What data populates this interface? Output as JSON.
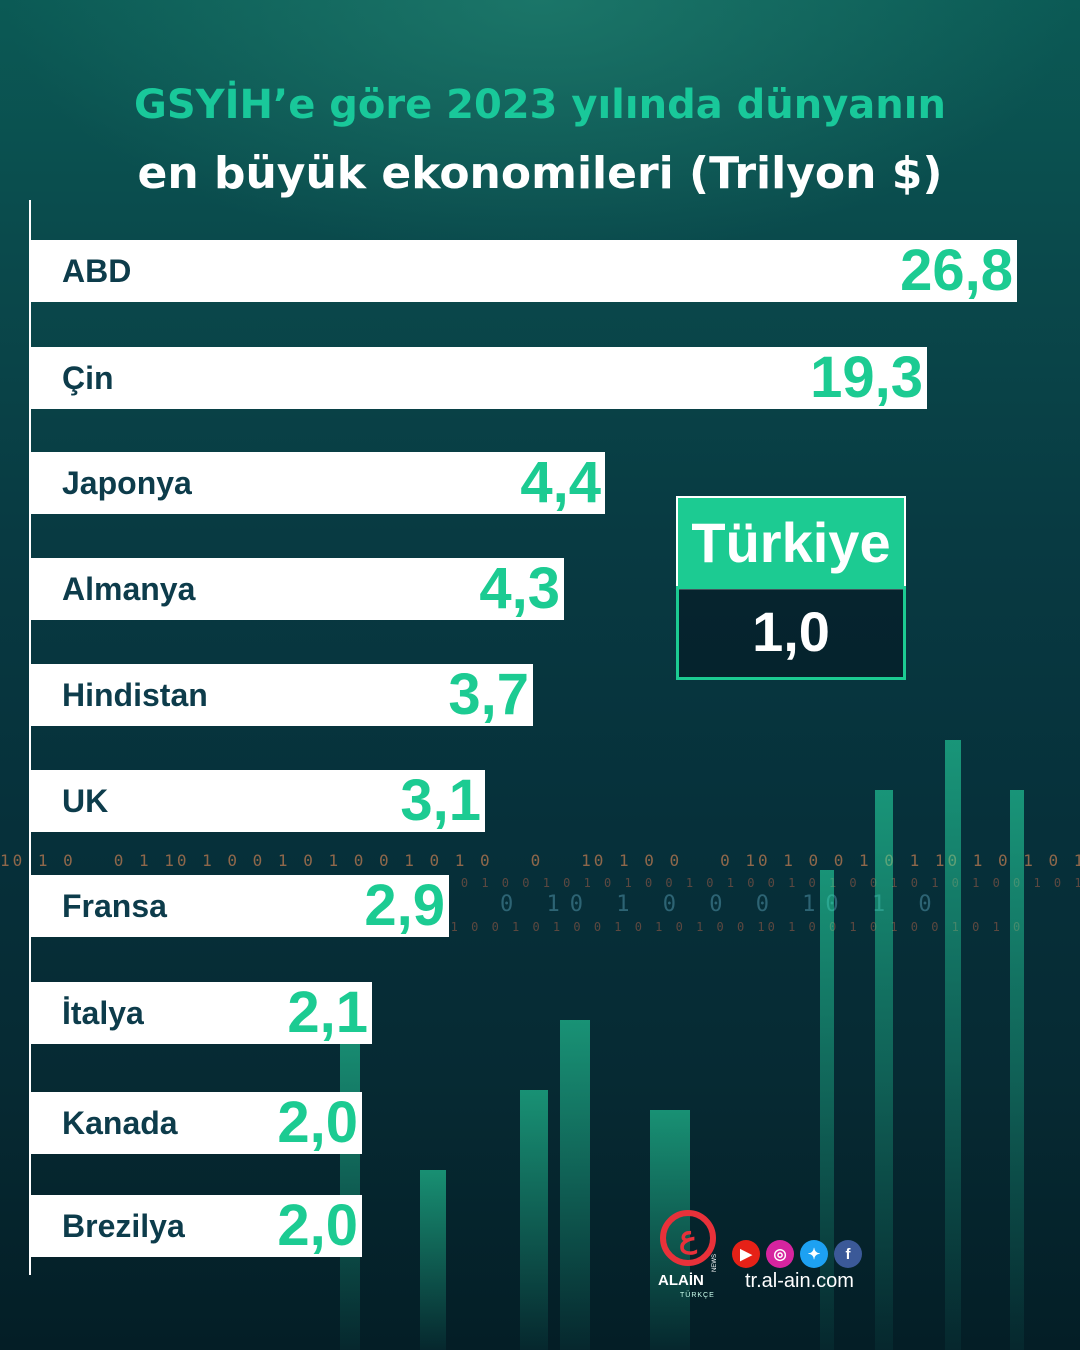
{
  "header": {
    "title_line1": "GSYİH’e göre 2023 yılında dünyanın",
    "title_line2": "en büyük ekonomileri (Trilyon $)"
  },
  "chart_data": {
    "type": "bar",
    "orientation": "horizontal",
    "title": "GSYİH’e göre 2023 yılında dünyanın en büyük ekonomileri (Trilyon $)",
    "categories": [
      "ABD",
      "Çin",
      "Japonya",
      "Almanya",
      "Hindistan",
      "UK",
      "Fransa",
      "İtalya",
      "Kanada",
      "Brezilya"
    ],
    "values": [
      26.8,
      19.3,
      4.4,
      4.3,
      3.7,
      3.1,
      2.9,
      2.1,
      2.0,
      2.0
    ],
    "value_labels": [
      "26,8",
      "19,3",
      "4,4",
      "4,3",
      "3,7",
      "3,1",
      "2,9",
      "2,1",
      "2,0",
      "2,0"
    ],
    "colors": {
      "bar": "#ffffff",
      "value": "#1ccb92",
      "category": "#0d3c4b"
    },
    "grid": false
  },
  "highlight": {
    "name": "Türkiye",
    "value": "1,0",
    "accent": "#1ccb92"
  },
  "brand": {
    "logo_letter": "ع",
    "logo_text": "ALAİN",
    "logo_news": "NEWS",
    "logo_sub": "TÜRKÇE",
    "website": "tr.al-ain.com",
    "social_icons": [
      "youtube-icon",
      "instagram-icon",
      "twitter-icon",
      "facebook-icon"
    ]
  }
}
